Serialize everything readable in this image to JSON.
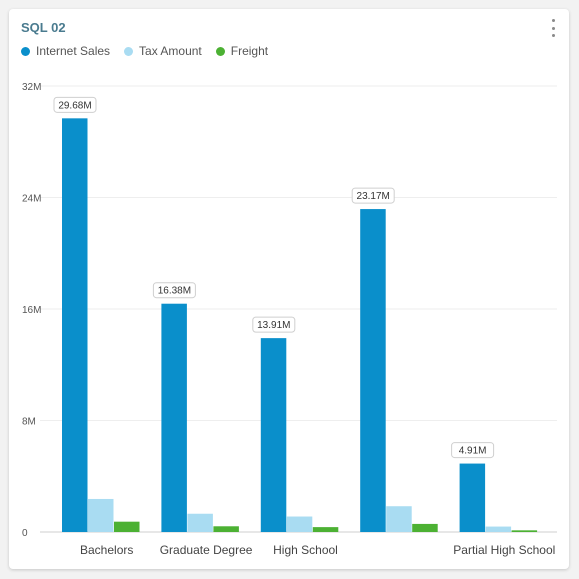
{
  "widget": {
    "title": "SQL 02"
  },
  "colors": {
    "internet_sales": "#0a8fcb",
    "tax_amount": "#a9dcf2",
    "freight": "#4cb133"
  },
  "chart_data": {
    "type": "bar",
    "categories": [
      "Bachelors",
      "Graduate Degree",
      "High School",
      "",
      "Partial High School"
    ],
    "series": [
      {
        "name": "Internet Sales",
        "values": [
          29.68,
          16.38,
          13.91,
          23.17,
          4.91
        ],
        "color": "#0a8fcb"
      },
      {
        "name": "Tax Amount",
        "values": [
          2.37,
          1.31,
          1.11,
          1.85,
          0.39
        ],
        "color": "#a9dcf2"
      },
      {
        "name": "Freight",
        "values": [
          0.74,
          0.41,
          0.35,
          0.58,
          0.12
        ],
        "color": "#4cb133"
      }
    ],
    "data_labels": [
      "29.68M",
      "16.38M",
      "13.91M",
      "23.17M",
      "4.91M"
    ],
    "y_ticks": [
      0,
      8,
      16,
      24,
      32
    ],
    "y_tick_labels": [
      "0",
      "8M",
      "16M",
      "24M",
      "32M"
    ],
    "ylim": [
      0,
      32
    ],
    "grid": true,
    "legend_position": "top-left"
  }
}
